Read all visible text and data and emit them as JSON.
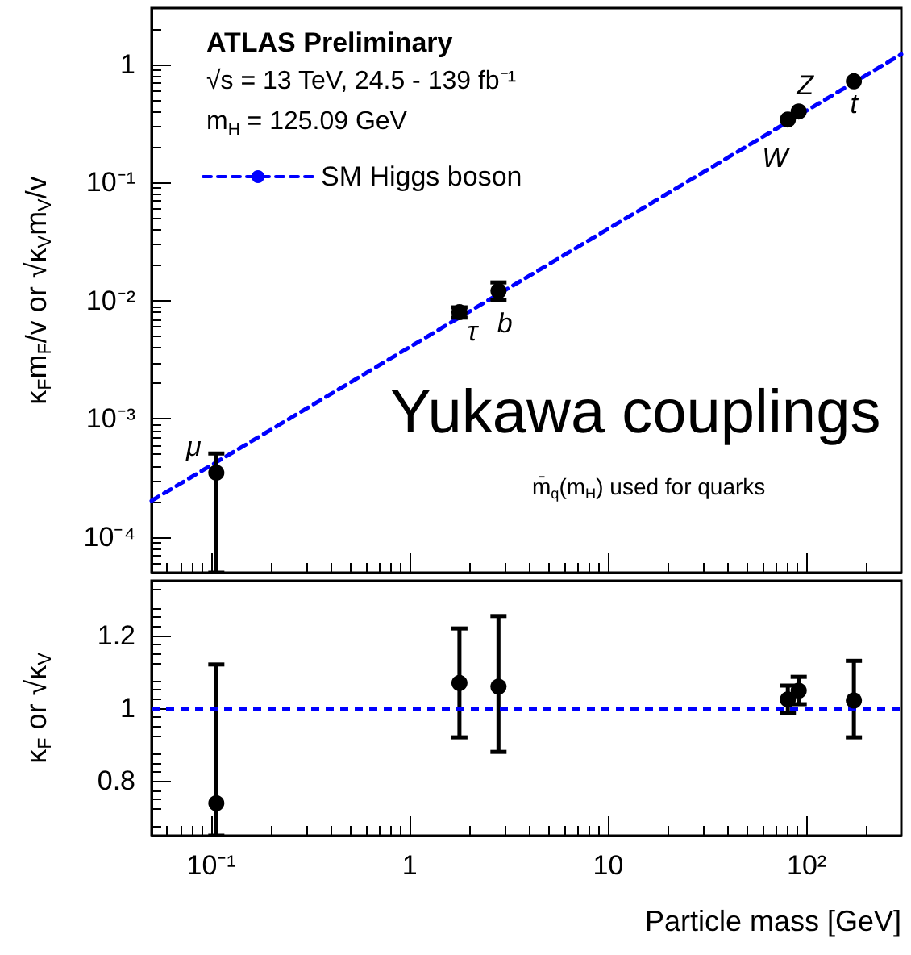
{
  "chart_data": [
    {
      "type": "scatter",
      "ylabel": "κ$_{F}$m$_{F}$/v or √κ$_{V}$m$_{V}$/v",
      "xlim": [
        0.05,
        300
      ],
      "ylim": [
        5e-05,
        3
      ],
      "log": "xy",
      "tick_labels": "y",
      "grid": false,
      "legend": "top left",
      "marker": "circle",
      "xticks": [
        0.1,
        1,
        10,
        100
      ],
      "yticks": [
        {
          "value": 0.0001,
          "label": "10⁻⁴"
        },
        {
          "value": 0.001,
          "label": "10⁻³"
        },
        {
          "value": 0.01,
          "label": "10⁻²"
        },
        {
          "value": 0.1,
          "label": "10⁻¹"
        },
        1
      ],
      "series": [
        {
          "type": "scatter",
          "color": "#000000",
          "x": [
            0.106,
            1.78,
            2.8,
            80.4,
            91.2,
            173
          ],
          "values": [
            0.00035,
            0.008,
            0.0121,
            0.342,
            0.4,
            0.72
          ],
          "errors": [
            [
              5e-05,
              0.00051
            ],
            [
              0.0072,
              0.0088
            ],
            [
              0.0102,
              0.0143
            ],
            null,
            null,
            null
          ]
        },
        {
          "type": "line",
          "name": "SM Higgs boson",
          "color": "#0000ff",
          "x": [
            0.05,
            300
          ],
          "values": [
            0.000203,
            1.22
          ],
          "marker": "none",
          "line_style": "dashed"
        }
      ],
      "annotations": [
        "ATLAS Preliminary",
        "√s = 13 TeV, 24.5 - 139 fb⁻¹",
        "m$_{H}$ = 125.09 GeV",
        "Yukawa couplings",
        "m̄$_{q}$(m$_{H}$) used for quarks",
        {
          "text": "μ",
          "x": 0.106,
          "y": 0.00035
        },
        {
          "text": "τ",
          "x": 1.78,
          "y": 0.008
        },
        {
          "text": "b",
          "x": 2.8,
          "y": 0.0121
        },
        {
          "text": "W",
          "x": 80.4,
          "y": 0.342
        },
        {
          "text": "Z",
          "x": 91.2,
          "y": 0.4
        },
        {
          "text": "t",
          "x": 173,
          "y": 0.72
        }
      ]
    },
    {
      "type": "scatter",
      "xlabel": "Particle mass [GeV]",
      "ylabel": "κ$_{F}$ or √κ$_{V}$",
      "xlim": [
        0.05,
        300
      ],
      "ylim": [
        0.65,
        1.35
      ],
      "log": "x",
      "grid": false,
      "marker": "circle",
      "xticks": [
        {
          "value": 0.1,
          "label": "10⁻¹"
        },
        1,
        10,
        {
          "value": 100,
          "label": "10²"
        }
      ],
      "yticks": [
        0.8,
        1,
        1.2
      ],
      "series": [
        {
          "type": "scatter",
          "color": "#000000",
          "x": [
            0.106,
            1.78,
            2.8,
            80.4,
            91.2,
            173
          ],
          "values": [
            0.739,
            1.069,
            1.059,
            1.024,
            1.048,
            1.021
          ],
          "errors": [
            [
              0.65,
              1.12
            ],
            [
              0.92,
              1.219
            ],
            [
              0.88,
              1.253
            ],
            [
              0.986,
              1.062
            ],
            [
              1.011,
              1.086
            ],
            [
              0.92,
              1.13
            ]
          ]
        }
      ],
      "ref_lines": [
        {
          "axis": "y",
          "value": 1,
          "color": "#0000ff",
          "line_style": "dashed"
        }
      ]
    }
  ]
}
